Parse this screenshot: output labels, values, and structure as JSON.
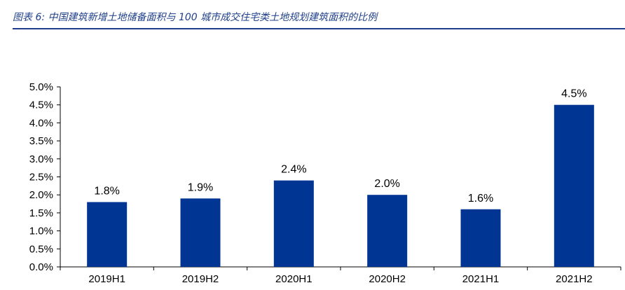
{
  "caption": {
    "text": "图表 6:  中国建筑新增土地储备面积与 100 城市成交住宅类土地规划建筑面积的比例"
  },
  "colors": {
    "bar": "#003594",
    "caption": "#1f3f8a",
    "axis": "#000000"
  },
  "chart_data": {
    "type": "bar",
    "title": "",
    "xlabel": "",
    "ylabel": "",
    "categories": [
      "2019H1",
      "2019H2",
      "2020H1",
      "2020H2",
      "2021H1",
      "2021H2"
    ],
    "values": [
      1.8,
      1.9,
      2.4,
      2.0,
      1.6,
      4.5
    ],
    "value_labels": [
      "1.8%",
      "1.9%",
      "2.4%",
      "2.0%",
      "1.6%",
      "4.5%"
    ],
    "ylim": [
      0,
      5
    ],
    "yticks": [
      0.0,
      0.5,
      1.0,
      1.5,
      2.0,
      2.5,
      3.0,
      3.5,
      4.0,
      4.5,
      5.0
    ],
    "ytick_labels": [
      "0.0%",
      "0.5%",
      "1.0%",
      "1.5%",
      "2.0%",
      "2.5%",
      "3.0%",
      "3.5%",
      "4.0%",
      "4.5%",
      "5.0%"
    ],
    "grid": false,
    "legend": "none"
  }
}
